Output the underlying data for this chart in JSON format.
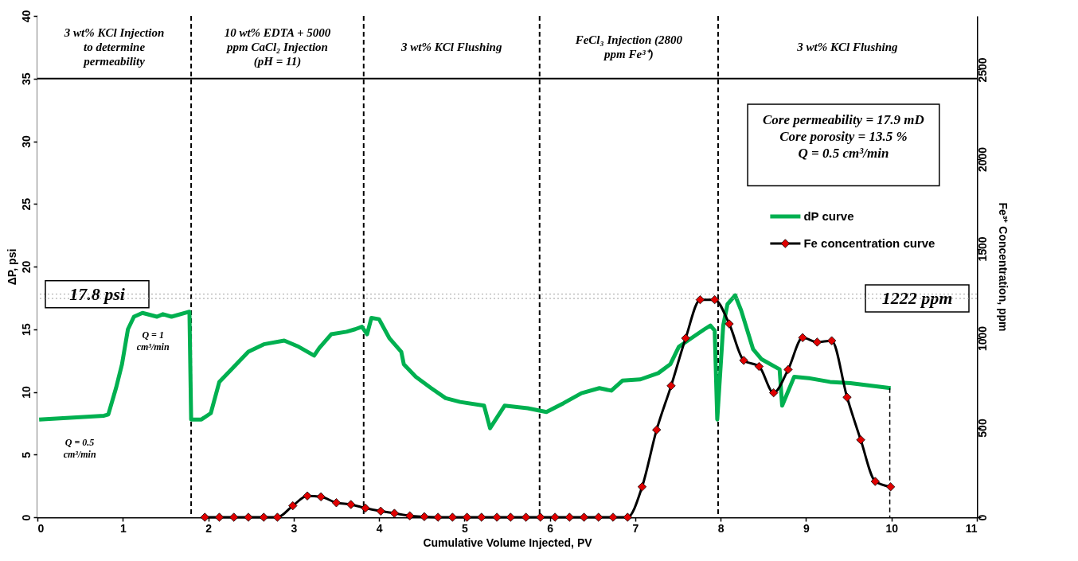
{
  "chart_data": {
    "type": "line",
    "xlabel": "Cumulative Volume Injected, PV",
    "ylabel": "ΔP, psi",
    "y2label": "Fe³⁺ Concentration, ppm",
    "xlim": [
      0,
      11
    ],
    "xticks": [
      0,
      1,
      2,
      3,
      4,
      5,
      6,
      7,
      8,
      9,
      10,
      11
    ],
    "ylim": [
      0,
      40
    ],
    "yticks": [
      0,
      5,
      10,
      15,
      20,
      25,
      30,
      35,
      40
    ],
    "y2lim": [
      0,
      2800
    ],
    "y2ticks": [
      0,
      500,
      1000,
      1500,
      2000,
      2500
    ],
    "grid": false,
    "legend": "right",
    "series": [
      {
        "name": "dP curve",
        "color": "#00b050",
        "axis": "y",
        "marker": "none",
        "line_style": "solid",
        "x": [
          0.02,
          0.78,
          0.83,
          0.92,
          0.99,
          1.06,
          1.13,
          1.23,
          1.4,
          1.47,
          1.57,
          1.78,
          1.8,
          1.92,
          2.03,
          2.13,
          2.3,
          2.47,
          2.65,
          2.89,
          3.06,
          3.24,
          3.3,
          3.44,
          3.62,
          3.72,
          3.8,
          3.86,
          3.91,
          4.0,
          4.12,
          4.26,
          4.29,
          4.43,
          4.61,
          4.78,
          4.95,
          5.23,
          5.3,
          5.47,
          5.74,
          5.96,
          6.16,
          6.37,
          6.58,
          6.72,
          6.85,
          7.06,
          7.27,
          7.41,
          7.51,
          7.68,
          7.81,
          7.88,
          7.93,
          7.96,
          8.03,
          8.08,
          8.17,
          8.24,
          8.38,
          8.48,
          8.69,
          8.72,
          8.86,
          9.03,
          9.28,
          9.52,
          9.99
        ],
        "values": [
          7.8,
          8.1,
          8.2,
          10.3,
          12.2,
          15.0,
          16.0,
          16.3,
          16.0,
          16.2,
          16.0,
          16.4,
          7.8,
          7.8,
          8.3,
          10.8,
          12.0,
          13.2,
          13.8,
          14.1,
          13.6,
          12.9,
          13.5,
          14.6,
          14.8,
          15.0,
          15.2,
          14.6,
          15.9,
          15.8,
          14.3,
          13.2,
          12.2,
          11.2,
          10.3,
          9.5,
          9.2,
          8.9,
          7.1,
          8.9,
          8.7,
          8.4,
          9.1,
          9.9,
          10.3,
          10.1,
          10.9,
          11.0,
          11.5,
          12.2,
          13.6,
          14.4,
          15.0,
          15.3,
          14.9,
          7.8,
          15.3,
          17.0,
          17.7,
          16.5,
          13.4,
          12.6,
          11.8,
          8.9,
          11.2,
          11.1,
          10.8,
          10.7,
          10.3
        ]
      },
      {
        "name": "Fe concentration curve",
        "color": "#e00000",
        "axis": "y2",
        "marker": "diamond",
        "line_style": "solid",
        "x": [
          1.96,
          2.13,
          2.3,
          2.47,
          2.65,
          2.81,
          2.99,
          3.16,
          3.32,
          3.5,
          3.67,
          3.84,
          4.02,
          4.18,
          4.36,
          4.53,
          4.69,
          4.86,
          5.03,
          5.2,
          5.38,
          5.54,
          5.72,
          5.89,
          6.06,
          6.23,
          6.4,
          6.57,
          6.74,
          6.91,
          7.08,
          7.25,
          7.42,
          7.59,
          7.76,
          7.93,
          8.1,
          8.27,
          8.45,
          8.62,
          8.79,
          8.96,
          9.13,
          9.3,
          9.48,
          9.64,
          9.81,
          9.99
        ],
        "values": [
          0,
          0,
          0,
          0,
          0,
          0,
          64,
          119,
          114,
          81,
          71,
          51,
          34,
          22,
          8,
          3,
          0,
          0,
          0,
          0,
          0,
          0,
          0,
          0,
          0,
          0,
          0,
          0,
          0,
          0,
          170,
          488,
          734,
          1000,
          1215,
          1215,
          1080,
          876,
          842,
          695,
          825,
          1003,
          978,
          986,
          670,
          432,
          200,
          170
        ]
      },
      {
        "color": "#000000",
        "axis": "y",
        "marker": "none",
        "line_style": "dashed",
        "x": [
          9.98,
          9.98
        ],
        "values": [
          10.3,
          0
        ]
      }
    ],
    "ref_lines": [
      {
        "axis": "x",
        "value": 1.8,
        "line_style": "dashed",
        "color": "#000000"
      },
      {
        "axis": "x",
        "value": 3.82,
        "line_style": "dashed",
        "color": "#000000"
      },
      {
        "axis": "x",
        "value": 5.88,
        "line_style": "dashed",
        "color": "#000000"
      },
      {
        "axis": "x",
        "value": 7.97,
        "line_style": "dashed",
        "color": "#000000"
      },
      {
        "axis": "y",
        "value": 35,
        "line_style": "solid",
        "color": "#000000"
      },
      {
        "axis": "y",
        "value": 17.8,
        "label": "17.8 psi",
        "line_style": "dotted",
        "color": "#a0a0a0"
      },
      {
        "axis": "y2",
        "value": 1222,
        "label": "1222 ppm",
        "line_style": "dotted",
        "color": "#a0a0a0"
      }
    ],
    "bands": [
      {
        "axis": "x",
        "from": 0,
        "to": 1.8,
        "label": "3 wt% KCl Injection to determine permeability",
        "color": "#ffffff"
      },
      {
        "axis": "x",
        "from": 1.8,
        "to": 3.82,
        "label": "10 wt% EDTA + 5000 ppm CaCl₂ Injection (pH = 11)",
        "color": "#ffffff"
      },
      {
        "axis": "x",
        "from": 3.82,
        "to": 5.88,
        "label": "3 wt% KCl Flushing",
        "color": "#ffffff"
      },
      {
        "axis": "x",
        "from": 5.88,
        "to": 7.97,
        "label": "FeCl₃ Injection (2800 ppm Fe³⁺)",
        "color": "#ffffff"
      },
      {
        "axis": "x",
        "from": 7.97,
        "to": 11,
        "label": "3 wt% KCl Flushing",
        "color": "#ffffff"
      }
    ],
    "annotations": [
      "Q = 1 cm³/min",
      "Q = 0.5 cm³/min",
      "Core permeability = 17.9 mD\nCore porosity = 13.5 %\n\nQ = 0.5 cm³/min"
    ]
  }
}
